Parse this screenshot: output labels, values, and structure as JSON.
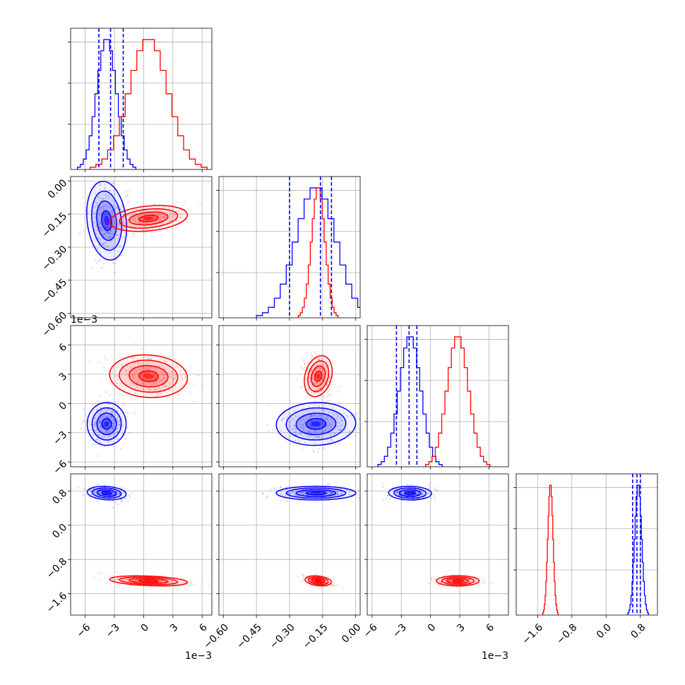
{
  "chart_data": {
    "type": "corner",
    "parameters": [
      {
        "ticks": [
          -6,
          -3,
          0,
          3,
          6
        ],
        "range": [
          -7.5,
          7.0
        ],
        "tick_labels": [
          "−6",
          "−3",
          "0",
          "3",
          "6"
        ],
        "scale_label": "1e−3",
        "scale": 0.001
      },
      {
        "ticks": [
          -0.6,
          -0.45,
          -0.3,
          -0.15,
          0.0
        ],
        "range": [
          -0.62,
          0.02
        ],
        "tick_labels": [
          "−0.60",
          "−0.45",
          "−0.30",
          "−0.15",
          "0.00"
        ],
        "scale_label": "",
        "scale": 1
      },
      {
        "ticks": [
          -6,
          -3,
          0,
          3,
          6
        ],
        "range": [
          -6.5,
          8.0
        ],
        "tick_labels": [
          "−6",
          "−3",
          "0",
          "3",
          "6"
        ],
        "scale_label": "1e−3",
        "scale": 0.001
      },
      {
        "ticks": [
          -1.6,
          -0.8,
          0.0,
          0.8
        ],
        "range": [
          -2.1,
          1.2
        ],
        "tick_labels": [
          "−1.6",
          "−0.8",
          "0.0",
          "0.8"
        ],
        "scale_label": "",
        "scale": 1
      }
    ],
    "series": [
      {
        "name": "",
        "color": "#0000ff",
        "means": [
          -3.8,
          -0.18,
          -2.1,
          0.75
        ],
        "sds": [
          1.0,
          0.09,
          1.1,
          0.08
        ],
        "corr": [
          [
            1,
            0.1,
            0.0,
            -0.3
          ],
          [
            0.1,
            1,
            0.1,
            0.0
          ],
          [
            0.0,
            0.1,
            1,
            -0.1
          ],
          [
            -0.3,
            0.0,
            -0.1,
            1
          ]
        ],
        "quantiles": [
          [
            -4.6,
            -3.4,
            -2.1
          ],
          [
            -0.3,
            -0.16,
            -0.11
          ],
          [
            -3.5,
            -2.2,
            -1.4
          ],
          [
            0.62,
            0.72,
            0.8
          ]
        ]
      },
      {
        "name": "",
        "color": "#ff0000",
        "means": [
          0.5,
          -0.17,
          2.8,
          -1.3
        ],
        "sds": [
          2.0,
          0.03,
          1.1,
          0.06
        ],
        "corr": [
          [
            1,
            0.5,
            -0.2,
            -0.5
          ],
          [
            0.5,
            1,
            -0.3,
            -0.5
          ],
          [
            -0.2,
            -0.3,
            1,
            0.0
          ],
          [
            -0.5,
            -0.5,
            0.0,
            1
          ]
        ],
        "quantiles": []
      }
    ],
    "grid": true
  }
}
